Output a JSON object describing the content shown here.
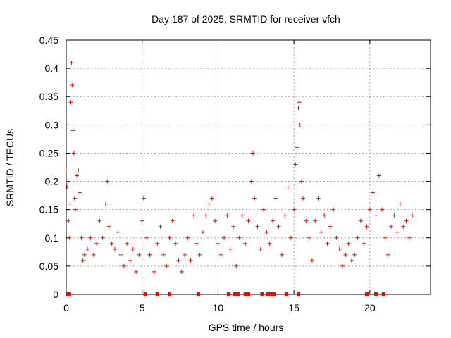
{
  "chart_data": {
    "type": "scatter",
    "title": "Day 187 of 2025, SRMTID for receiver vfch",
    "xlabel": "GPS time / hours",
    "ylabel": "SRMTID / TECUs",
    "xlim": [
      0,
      24
    ],
    "ylim": [
      0,
      0.45
    ],
    "x_ticks": [
      0,
      5,
      10,
      15,
      20
    ],
    "y_ticks": [
      0,
      0.05,
      0.1,
      0.15,
      0.2,
      0.25,
      0.3,
      0.35,
      0.4,
      0.45
    ],
    "x_tick_labels": [
      "0",
      "5",
      "10",
      "15",
      "20"
    ],
    "y_tick_labels": [
      "0",
      "0.05",
      "0.1",
      "0.15",
      "0.2",
      "0.25",
      "0.3",
      "0.35",
      "0.4",
      "0.45"
    ],
    "grid": true,
    "marker": "+",
    "color": "#ff0000",
    "series": [
      {
        "name": "SRMTID",
        "points": [
          [
            0.0,
            0.22
          ],
          [
            0.05,
            0.19
          ],
          [
            0.1,
            0.2
          ],
          [
            0.15,
            0.13
          ],
          [
            0.2,
            0.1
          ],
          [
            0.25,
            0.16
          ],
          [
            0.3,
            0.34
          ],
          [
            0.35,
            0.41
          ],
          [
            0.4,
            0.37
          ],
          [
            0.45,
            0.29
          ],
          [
            0.5,
            0.25
          ],
          [
            0.55,
            0.17
          ],
          [
            0.6,
            0.15
          ],
          [
            0.7,
            0.21
          ],
          [
            0.8,
            0.22
          ],
          [
            0.9,
            0.18
          ],
          [
            1.0,
            0.1
          ],
          [
            1.1,
            0.06
          ],
          [
            1.2,
            0.07
          ],
          [
            1.4,
            0.08
          ],
          [
            1.6,
            0.1
          ],
          [
            1.8,
            0.07
          ],
          [
            2.0,
            0.09
          ],
          [
            2.2,
            0.13
          ],
          [
            2.4,
            0.1
          ],
          [
            2.6,
            0.16
          ],
          [
            2.7,
            0.2
          ],
          [
            2.8,
            0.12
          ],
          [
            3.0,
            0.09
          ],
          [
            3.2,
            0.08
          ],
          [
            3.4,
            0.11
          ],
          [
            3.6,
            0.07
          ],
          [
            3.8,
            0.05
          ],
          [
            4.0,
            0.09
          ],
          [
            4.2,
            0.06
          ],
          [
            4.4,
            0.08
          ],
          [
            4.6,
            0.04
          ],
          [
            4.8,
            0.07
          ],
          [
            5.0,
            0.13
          ],
          [
            5.1,
            0.17
          ],
          [
            5.3,
            0.1
          ],
          [
            5.5,
            0.07
          ],
          [
            5.8,
            0.04
          ],
          [
            6.0,
            0.09
          ],
          [
            6.2,
            0.12
          ],
          [
            6.4,
            0.07
          ],
          [
            6.6,
            0.05
          ],
          [
            6.8,
            0.1
          ],
          [
            7.0,
            0.13
          ],
          [
            7.2,
            0.09
          ],
          [
            7.4,
            0.06
          ],
          [
            7.6,
            0.04
          ],
          [
            7.8,
            0.07
          ],
          [
            8.0,
            0.1
          ],
          [
            8.2,
            0.06
          ],
          [
            8.4,
            0.14
          ],
          [
            8.6,
            0.09
          ],
          [
            8.8,
            0.07
          ],
          [
            9.0,
            0.11
          ],
          [
            9.2,
            0.14
          ],
          [
            9.4,
            0.16
          ],
          [
            9.6,
            0.17
          ],
          [
            9.8,
            0.13
          ],
          [
            10.0,
            0.09
          ],
          [
            10.2,
            0.07
          ],
          [
            10.4,
            0.1
          ],
          [
            10.6,
            0.14
          ],
          [
            10.8,
            0.08
          ],
          [
            11.0,
            0.12
          ],
          [
            11.2,
            0.05
          ],
          [
            11.4,
            0.1
          ],
          [
            11.6,
            0.14
          ],
          [
            11.8,
            0.09
          ],
          [
            12.0,
            0.13
          ],
          [
            12.2,
            0.2
          ],
          [
            12.3,
            0.25
          ],
          [
            12.4,
            0.17
          ],
          [
            12.6,
            0.12
          ],
          [
            12.8,
            0.08
          ],
          [
            13.0,
            0.15
          ],
          [
            13.2,
            0.11
          ],
          [
            13.4,
            0.09
          ],
          [
            13.6,
            0.13
          ],
          [
            13.8,
            0.17
          ],
          [
            14.0,
            0.12
          ],
          [
            14.2,
            0.07
          ],
          [
            14.4,
            0.14
          ],
          [
            14.6,
            0.19
          ],
          [
            14.8,
            0.1
          ],
          [
            15.0,
            0.15
          ],
          [
            15.1,
            0.23
          ],
          [
            15.2,
            0.26
          ],
          [
            15.3,
            0.33
          ],
          [
            15.35,
            0.34
          ],
          [
            15.4,
            0.3
          ],
          [
            15.5,
            0.2
          ],
          [
            15.6,
            0.17
          ],
          [
            15.8,
            0.13
          ],
          [
            16.0,
            0.1
          ],
          [
            16.2,
            0.06
          ],
          [
            16.4,
            0.13
          ],
          [
            16.6,
            0.17
          ],
          [
            16.8,
            0.11
          ],
          [
            17.0,
            0.14
          ],
          [
            17.2,
            0.09
          ],
          [
            17.4,
            0.12
          ],
          [
            17.6,
            0.15
          ],
          [
            17.8,
            0.1
          ],
          [
            18.0,
            0.08
          ],
          [
            18.2,
            0.05
          ],
          [
            18.4,
            0.07
          ],
          [
            18.6,
            0.09
          ],
          [
            18.8,
            0.06
          ],
          [
            19.0,
            0.07
          ],
          [
            19.2,
            0.1
          ],
          [
            19.4,
            0.13
          ],
          [
            19.6,
            0.09
          ],
          [
            19.8,
            0.12
          ],
          [
            20.0,
            0.15
          ],
          [
            20.2,
            0.18
          ],
          [
            20.4,
            0.14
          ],
          [
            20.6,
            0.21
          ],
          [
            20.8,
            0.15
          ],
          [
            21.0,
            0.1
          ],
          [
            21.2,
            0.07
          ],
          [
            21.4,
            0.12
          ],
          [
            21.6,
            0.14
          ],
          [
            21.8,
            0.11
          ],
          [
            22.0,
            0.16
          ],
          [
            22.2,
            0.12
          ],
          [
            22.4,
            0.13
          ],
          [
            22.6,
            0.1
          ],
          [
            22.8,
            0.14
          ]
        ]
      }
    ],
    "zero_marks_x": [
      0.1,
      0.2,
      5.2,
      6.0,
      6.8,
      8.7,
      10.7,
      11.1,
      11.3,
      11.8,
      12.0,
      12.9,
      13.3,
      13.5,
      13.7,
      14.5,
      15.3,
      19.8,
      20.4,
      20.9
    ]
  }
}
